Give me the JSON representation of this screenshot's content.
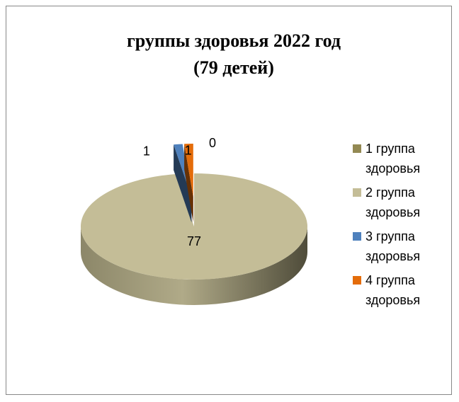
{
  "chart_data": {
    "type": "pie",
    "title": "группы здоровья 2022 год",
    "subtitle": "(79 детей)",
    "categories": [
      "1 группа здоровья",
      "2 группа здоровья",
      "3 группа здоровья",
      "4 группа здоровья"
    ],
    "values": [
      0,
      77,
      1,
      1
    ],
    "colors": [
      "#938953",
      "#c4bd97",
      "#4f81bd",
      "#e46c0a"
    ],
    "legend": "right"
  }
}
